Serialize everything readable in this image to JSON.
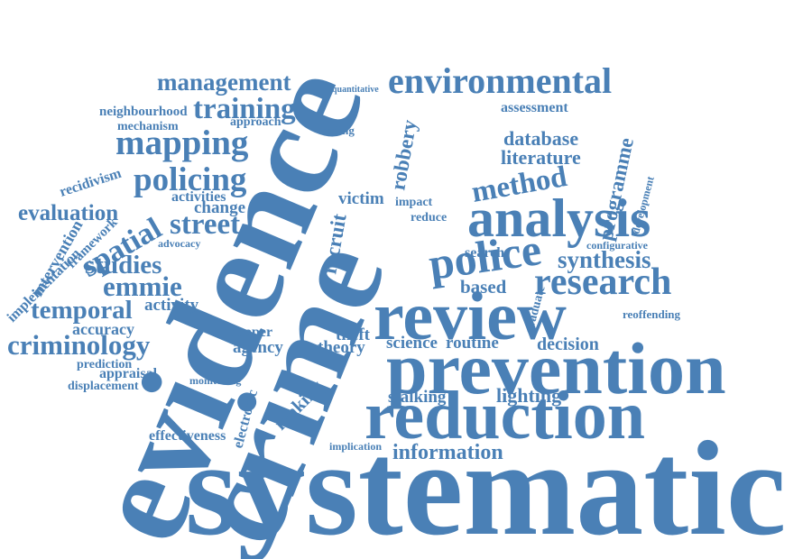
{
  "words": [
    "systematic",
    "evidence",
    "crime",
    "prevention",
    "reduction",
    "review",
    "analysis",
    "police",
    "research",
    "environmental",
    "management",
    "training",
    "mapping",
    "policing",
    "street",
    "spatial",
    "evaluation",
    "studies",
    "emmie",
    "temporal",
    "criminology",
    "accuracy",
    "method",
    "synthesis",
    "database",
    "literature",
    "programme",
    "information",
    "lighting",
    "decision",
    "science",
    "routine",
    "theory",
    "agency",
    "activity",
    "effectiveness",
    "displacement",
    "appraisal",
    "prediction",
    "stalking",
    "victim",
    "robbery",
    "assessment",
    "neighbourhood",
    "mechanism",
    "approach",
    "recidivism",
    "intervention",
    "change",
    "activities",
    "configurative",
    "reoffending",
    "copper",
    "making",
    "electronic",
    "based",
    "search",
    "graduate",
    "reduce",
    "impact",
    "recruit",
    "theft",
    "implication",
    "development",
    "quantitative",
    "coding",
    "monitoring",
    "advocacy",
    "framework",
    "implementation"
  ]
}
